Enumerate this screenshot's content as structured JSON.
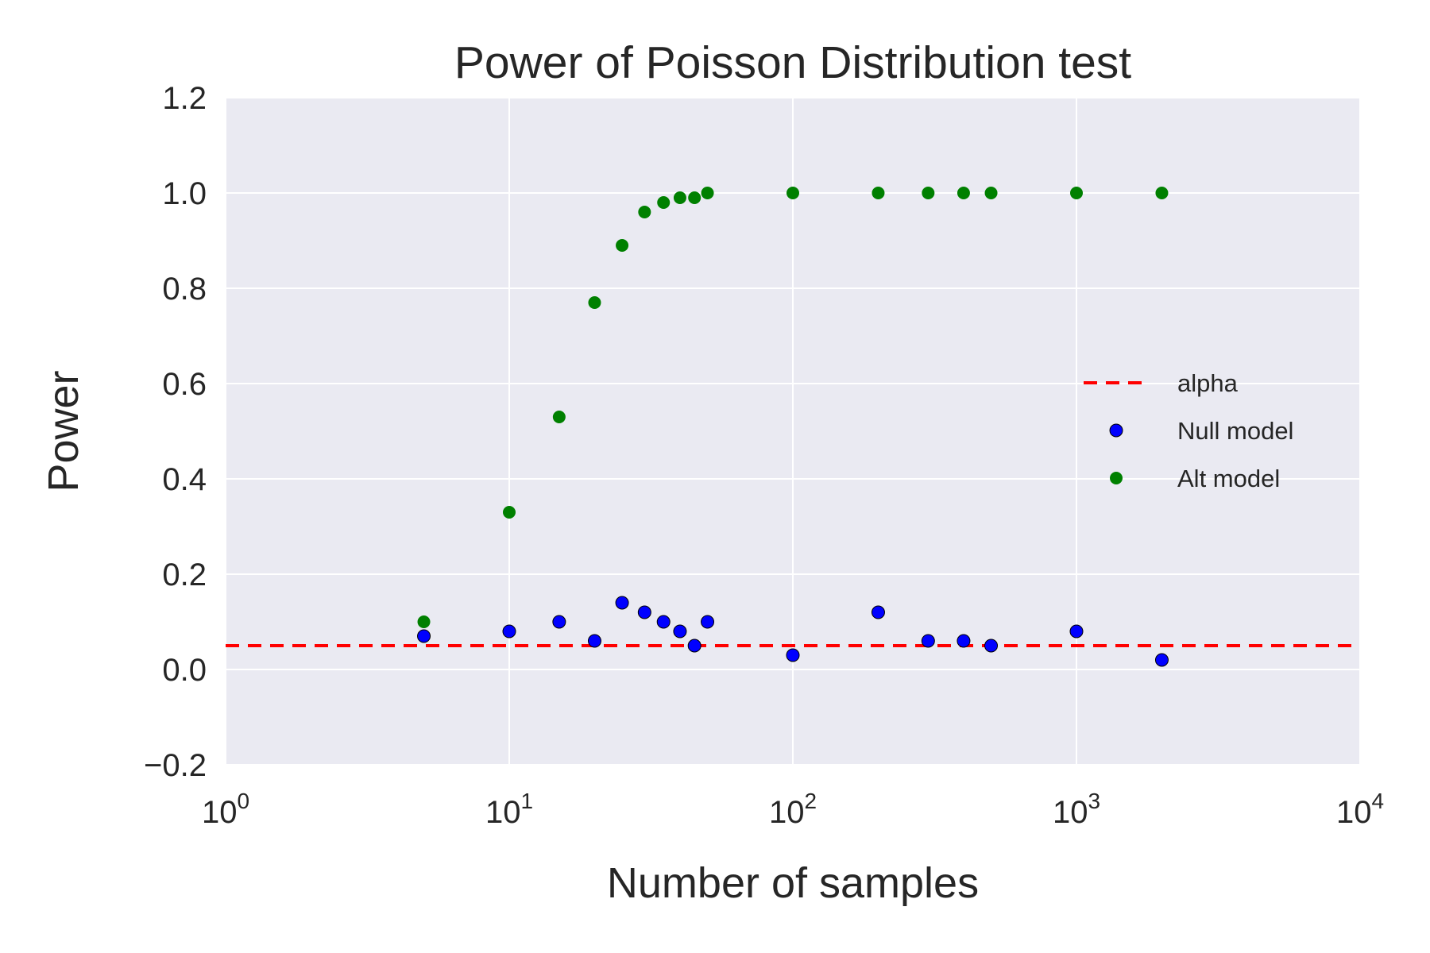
{
  "chart_data": {
    "type": "scatter",
    "title": "Power of Poisson Distribution test",
    "xlabel": "Number of samples",
    "ylabel": "Power",
    "xscale": "log",
    "xlim": [
      1,
      10000
    ],
    "ylim": [
      -0.2,
      1.2
    ],
    "grid": true,
    "legend_position": "right",
    "x_ticks": [
      {
        "value": 1,
        "base": "10",
        "exp": "0"
      },
      {
        "value": 10,
        "base": "10",
        "exp": "1"
      },
      {
        "value": 100,
        "base": "10",
        "exp": "2"
      },
      {
        "value": 1000,
        "base": "10",
        "exp": "3"
      },
      {
        "value": 10000,
        "base": "10",
        "exp": "4"
      }
    ],
    "y_ticks": [
      {
        "value": -0.2,
        "label": "−0.2"
      },
      {
        "value": 0.0,
        "label": "0.0"
      },
      {
        "value": 0.2,
        "label": "0.2"
      },
      {
        "value": 0.4,
        "label": "0.4"
      },
      {
        "value": 0.6,
        "label": "0.6"
      },
      {
        "value": 0.8,
        "label": "0.8"
      },
      {
        "value": 1.0,
        "label": "1.0"
      },
      {
        "value": 1.2,
        "label": "1.2"
      }
    ],
    "hline": {
      "name": "alpha",
      "y": 0.05,
      "color": "#ff0000",
      "style": "dashed"
    },
    "series": [
      {
        "name": "Null model",
        "color": "#0000ff",
        "x": [
          5,
          10,
          15,
          20,
          25,
          30,
          35,
          40,
          45,
          50,
          100,
          200,
          300,
          400,
          500,
          1000,
          2000
        ],
        "y": [
          0.07,
          0.08,
          0.1,
          0.06,
          0.14,
          0.12,
          0.1,
          0.08,
          0.05,
          0.1,
          0.03,
          0.12,
          0.06,
          0.06,
          0.05,
          0.08,
          0.02
        ]
      },
      {
        "name": "Alt model",
        "color": "#008000",
        "x": [
          5,
          10,
          15,
          20,
          25,
          30,
          35,
          40,
          45,
          50,
          100,
          200,
          300,
          400,
          500,
          1000,
          2000
        ],
        "y": [
          0.1,
          0.33,
          0.53,
          0.77,
          0.89,
          0.96,
          0.98,
          0.99,
          0.99,
          1.0,
          1.0,
          1.0,
          1.0,
          1.0,
          1.0,
          1.0,
          1.0
        ]
      }
    ]
  },
  "colors": {
    "plot_background": "#eaeaf2",
    "grid": "#ffffff",
    "text": "#262626"
  }
}
